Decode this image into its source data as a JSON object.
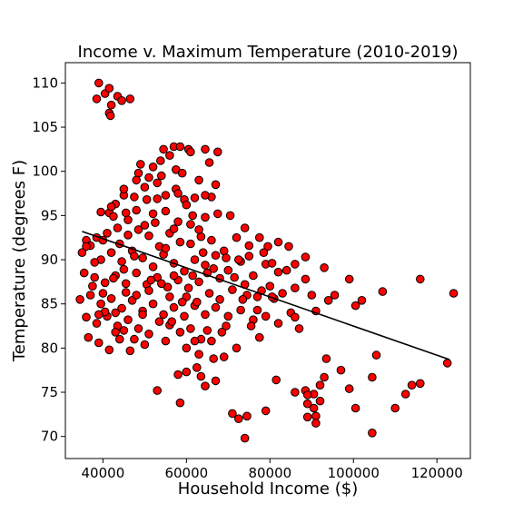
{
  "chart_data": {
    "type": "scatter",
    "title": "Income v. Maximum Temperature (2010-2019)",
    "xlabel": "Household Income ($)",
    "ylabel": "Temperature (degrees F)",
    "xlim": [
      31000,
      128000
    ],
    "ylim": [
      67.5,
      112.3
    ],
    "x_ticks": [
      40000,
      60000,
      80000,
      100000,
      120000
    ],
    "x_tick_labels": [
      "40000",
      "60000",
      "80000",
      "100000",
      "120000"
    ],
    "y_ticks": [
      70,
      75,
      80,
      85,
      90,
      95,
      100,
      105,
      110
    ],
    "y_tick_labels": [
      "70",
      "75",
      "80",
      "85",
      "90",
      "95",
      "100",
      "105",
      "110"
    ],
    "grid": false,
    "marker_color": "#ff0000",
    "marker_edge_color": "#000000",
    "trendline": {
      "x": [
        35000,
        123000
      ],
      "y": [
        93.2,
        78.7
      ]
    },
    "points": [
      [
        39000,
        110.0
      ],
      [
        38500,
        108.2
      ],
      [
        40500,
        108.8
      ],
      [
        41500,
        109.4
      ],
      [
        42000,
        107.5
      ],
      [
        41500,
        106.6
      ],
      [
        41800,
        106.3
      ],
      [
        43500,
        108.5
      ],
      [
        44500,
        108.0
      ],
      [
        46500,
        108.2
      ],
      [
        54500,
        102.5
      ],
      [
        57000,
        102.8
      ],
      [
        58500,
        102.8
      ],
      [
        60500,
        102.5
      ],
      [
        61000,
        102.2
      ],
      [
        64500,
        102.5
      ],
      [
        67500,
        102.2
      ],
      [
        65500,
        101.0
      ],
      [
        56000,
        101.8
      ],
      [
        53800,
        101.2
      ],
      [
        52000,
        100.5
      ],
      [
        49000,
        100.8
      ],
      [
        48500,
        99.8
      ],
      [
        51000,
        99.3
      ],
      [
        54000,
        99.5
      ],
      [
        57500,
        100.2
      ],
      [
        59000,
        99.8
      ],
      [
        63000,
        99.0
      ],
      [
        67000,
        98.5
      ],
      [
        66000,
        97.1
      ],
      [
        64500,
        97.3
      ],
      [
        62000,
        97.0
      ],
      [
        59500,
        96.8
      ],
      [
        57500,
        98.0
      ],
      [
        55000,
        97.3
      ],
      [
        53000,
        96.9
      ],
      [
        50500,
        96.8
      ],
      [
        47500,
        97.1
      ],
      [
        45000,
        97.3
      ],
      [
        43000,
        96.3
      ],
      [
        41500,
        95.3
      ],
      [
        39500,
        95.4
      ],
      [
        42500,
        94.9
      ],
      [
        45500,
        95.3
      ],
      [
        48000,
        95.6
      ],
      [
        52000,
        95.2
      ],
      [
        55000,
        95.5
      ],
      [
        58000,
        94.3
      ],
      [
        61500,
        95.0
      ],
      [
        64500,
        94.8
      ],
      [
        67500,
        95.2
      ],
      [
        70500,
        95.0
      ],
      [
        74000,
        93.6
      ],
      [
        36000,
        92.2
      ],
      [
        38500,
        92.5
      ],
      [
        41000,
        93.0
      ],
      [
        43500,
        93.6
      ],
      [
        46000,
        92.8
      ],
      [
        48500,
        93.4
      ],
      [
        51000,
        92.7
      ],
      [
        53500,
        91.5
      ],
      [
        56000,
        93.0
      ],
      [
        58500,
        92.0
      ],
      [
        61000,
        91.8
      ],
      [
        63500,
        92.6
      ],
      [
        66000,
        92.2
      ],
      [
        69000,
        91.0
      ],
      [
        72000,
        92.5
      ],
      [
        75000,
        91.6
      ],
      [
        77500,
        92.5
      ],
      [
        79500,
        91.5
      ],
      [
        82000,
        92.0
      ],
      [
        84500,
        91.5
      ],
      [
        35000,
        90.8
      ],
      [
        37000,
        91.6
      ],
      [
        39500,
        90.0
      ],
      [
        42000,
        90.8
      ],
      [
        44500,
        89.8
      ],
      [
        47000,
        91.0
      ],
      [
        49500,
        90.2
      ],
      [
        52000,
        89.2
      ],
      [
        54500,
        90.6
      ],
      [
        57000,
        89.6
      ],
      [
        59500,
        88.7
      ],
      [
        62000,
        90.0
      ],
      [
        64500,
        89.4
      ],
      [
        67000,
        90.5
      ],
      [
        70000,
        88.8
      ],
      [
        73000,
        89.8
      ],
      [
        76000,
        88.2
      ],
      [
        79000,
        89.5
      ],
      [
        82000,
        88.6
      ],
      [
        86000,
        89.5
      ],
      [
        88500,
        90.3
      ],
      [
        93000,
        89.1
      ],
      [
        35500,
        88.5
      ],
      [
        38000,
        88.0
      ],
      [
        40500,
        87.4
      ],
      [
        43000,
        88.2
      ],
      [
        45500,
        87.3
      ],
      [
        48000,
        88.5
      ],
      [
        50500,
        87.2
      ],
      [
        53000,
        88.0
      ],
      [
        55500,
        86.9
      ],
      [
        58000,
        87.7
      ],
      [
        60500,
        86.8
      ],
      [
        63000,
        87.5
      ],
      [
        65500,
        86.2
      ],
      [
        68000,
        87.9
      ],
      [
        71000,
        86.6
      ],
      [
        74000,
        87.2
      ],
      [
        77000,
        85.8
      ],
      [
        80000,
        87.0
      ],
      [
        83000,
        86.2
      ],
      [
        86000,
        86.8
      ],
      [
        90000,
        86.0
      ],
      [
        95500,
        86.0
      ],
      [
        99000,
        87.8
      ],
      [
        102000,
        85.4
      ],
      [
        107000,
        86.4
      ],
      [
        116000,
        87.8
      ],
      [
        124000,
        86.2
      ],
      [
        34500,
        85.5
      ],
      [
        37000,
        86.0
      ],
      [
        39500,
        85.0
      ],
      [
        42000,
        85.6
      ],
      [
        44500,
        84.5
      ],
      [
        47000,
        85.4
      ],
      [
        49500,
        84.2
      ],
      [
        52000,
        85.0
      ],
      [
        54500,
        83.8
      ],
      [
        57000,
        84.6
      ],
      [
        59500,
        83.6
      ],
      [
        62000,
        84.8
      ],
      [
        64500,
        83.8
      ],
      [
        67000,
        84.6
      ],
      [
        70000,
        83.6
      ],
      [
        73000,
        84.3
      ],
      [
        76000,
        83.2
      ],
      [
        79000,
        83.6
      ],
      [
        82000,
        82.8
      ],
      [
        85000,
        84.0
      ],
      [
        91000,
        84.2
      ],
      [
        100500,
        84.8
      ],
      [
        36000,
        83.5
      ],
      [
        38500,
        82.8
      ],
      [
        41000,
        83.6
      ],
      [
        43500,
        82.5
      ],
      [
        46000,
        83.2
      ],
      [
        48500,
        82.2
      ],
      [
        51000,
        81.6
      ],
      [
        53500,
        83.0
      ],
      [
        56000,
        82.6
      ],
      [
        58500,
        81.8
      ],
      [
        61000,
        82.2
      ],
      [
        63500,
        81.0
      ],
      [
        66000,
        80.8
      ],
      [
        68500,
        81.8
      ],
      [
        72000,
        80.0
      ],
      [
        75500,
        82.5
      ],
      [
        77500,
        81.2
      ],
      [
        87000,
        82.2
      ],
      [
        36500,
        81.2
      ],
      [
        39000,
        80.6
      ],
      [
        41500,
        79.8
      ],
      [
        44000,
        81.0
      ],
      [
        46500,
        79.7
      ],
      [
        50000,
        80.4
      ],
      [
        55000,
        80.8
      ],
      [
        60000,
        80.0
      ],
      [
        63000,
        79.3
      ],
      [
        66500,
        78.8
      ],
      [
        69000,
        79.0
      ],
      [
        93500,
        78.8
      ],
      [
        97000,
        77.5
      ],
      [
        105500,
        79.2
      ],
      [
        122500,
        78.3
      ],
      [
        58000,
        77.0
      ],
      [
        60000,
        77.3
      ],
      [
        62500,
        77.8
      ],
      [
        63500,
        76.8
      ],
      [
        64500,
        75.7
      ],
      [
        67000,
        76.3
      ],
      [
        81500,
        76.4
      ],
      [
        93000,
        76.7
      ],
      [
        104500,
        76.7
      ],
      [
        53000,
        75.2
      ],
      [
        86000,
        75.0
      ],
      [
        88500,
        75.2
      ],
      [
        90500,
        74.8
      ],
      [
        89000,
        74.7
      ],
      [
        92000,
        75.8
      ],
      [
        99000,
        75.4
      ],
      [
        112500,
        74.8
      ],
      [
        114000,
        75.8
      ],
      [
        116000,
        76.0
      ],
      [
        58500,
        73.8
      ],
      [
        89000,
        73.7
      ],
      [
        90500,
        73.2
      ],
      [
        92000,
        74.0
      ],
      [
        100500,
        73.2
      ],
      [
        110000,
        73.2
      ],
      [
        71000,
        72.6
      ],
      [
        74500,
        72.3
      ],
      [
        79000,
        72.9
      ],
      [
        72500,
        72.0
      ],
      [
        89000,
        72.2
      ],
      [
        91000,
        72.3
      ],
      [
        91000,
        71.5
      ],
      [
        74000,
        69.8
      ],
      [
        104500,
        70.4
      ],
      [
        36000,
        91.5
      ],
      [
        38000,
        89.7
      ],
      [
        40000,
        92.2
      ],
      [
        44000,
        91.8
      ],
      [
        46000,
        94.5
      ],
      [
        50000,
        93.9
      ],
      [
        52500,
        94.2
      ],
      [
        55000,
        91.3
      ],
      [
        57000,
        93.5
      ],
      [
        60000,
        96.2
      ],
      [
        42000,
        96.0
      ],
      [
        45000,
        98.0
      ],
      [
        48000,
        99.0
      ],
      [
        50000,
        98.2
      ],
      [
        53000,
        98.7
      ],
      [
        58000,
        97.5
      ],
      [
        61000,
        94.0
      ],
      [
        63000,
        93.4
      ],
      [
        47500,
        90.4
      ],
      [
        45000,
        88.9
      ],
      [
        42500,
        87.9
      ],
      [
        40000,
        86.2
      ],
      [
        57000,
        88.2
      ],
      [
        60000,
        85.8
      ],
      [
        62500,
        85.2
      ],
      [
        65000,
        88.5
      ],
      [
        68000,
        85.5
      ],
      [
        71500,
        88.0
      ],
      [
        74500,
        86.0
      ],
      [
        78000,
        86.5
      ],
      [
        81000,
        85.6
      ],
      [
        84000,
        88.8
      ],
      [
        40500,
        84.1
      ],
      [
        43000,
        84.0
      ],
      [
        45500,
        86.3
      ],
      [
        48000,
        86.0
      ],
      [
        51000,
        86.5
      ],
      [
        56000,
        85.8
      ],
      [
        59000,
        85.2
      ],
      [
        61500,
        88.2
      ],
      [
        64000,
        90.8
      ],
      [
        66500,
        89.0
      ],
      [
        69500,
        90.2
      ],
      [
        72500,
        90.0
      ],
      [
        75000,
        90.4
      ],
      [
        78500,
        90.8
      ],
      [
        80500,
        89.6
      ],
      [
        37500,
        87.0
      ],
      [
        39000,
        83.8
      ],
      [
        43000,
        81.8
      ],
      [
        45000,
        82.0
      ],
      [
        47500,
        81.0
      ],
      [
        49500,
        83.8
      ],
      [
        51500,
        87.7
      ],
      [
        54000,
        87.3
      ],
      [
        56500,
        83.0
      ],
      [
        62000,
        80.8
      ],
      [
        65000,
        82.0
      ],
      [
        69500,
        82.5
      ],
      [
        73500,
        85.5
      ],
      [
        77000,
        84.3
      ],
      [
        80500,
        85.8
      ],
      [
        86000,
        83.5
      ],
      [
        88500,
        87.8
      ],
      [
        94000,
        85.4
      ]
    ]
  }
}
